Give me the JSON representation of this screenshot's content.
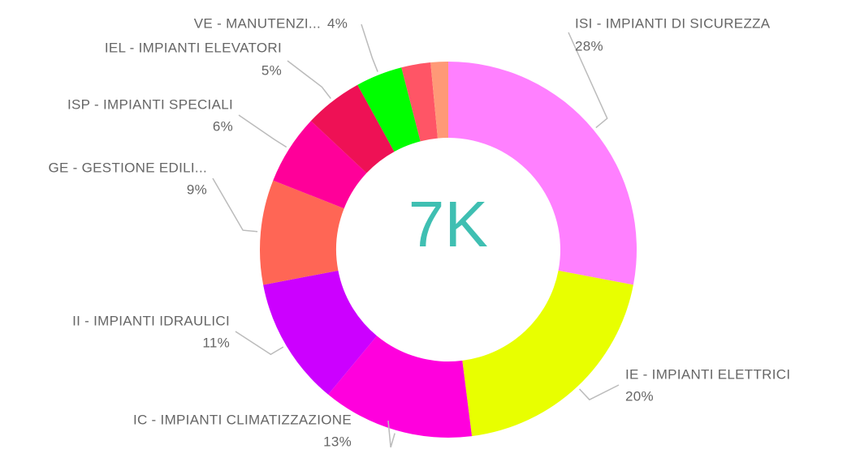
{
  "chart_data": {
    "type": "donut",
    "center_label": "7K",
    "categories": [
      "ISI - IMPIANTI DI SICUREZZA",
      "IE - IMPIANTI ELETTRICI",
      "IC - IMPIANTI CLIMATIZZAZIONE",
      "II - IMPIANTI IDRAULICI",
      "GE - GESTIONE EDILI...",
      "ISP - IMPIANTI SPECIALI",
      "IEL - IMPIANTI ELEVATORI",
      "VE - MANUTENZI...",
      null,
      null
    ],
    "values": [
      28,
      20,
      13,
      11,
      9,
      6,
      5,
      4,
      2.5,
      1.5
    ],
    "value_labels": [
      "28%",
      "20%",
      "13%",
      "11%",
      "9%",
      "6%",
      "5%",
      "4%",
      null,
      null
    ],
    "colors": [
      "#ff80ff",
      "#e8ff00",
      "#ff00dd",
      "#cc00ff",
      "#ff6655",
      "#ff0099",
      "#ee1155",
      "#00ff00",
      "#ff5566",
      "#ff9977"
    ]
  }
}
